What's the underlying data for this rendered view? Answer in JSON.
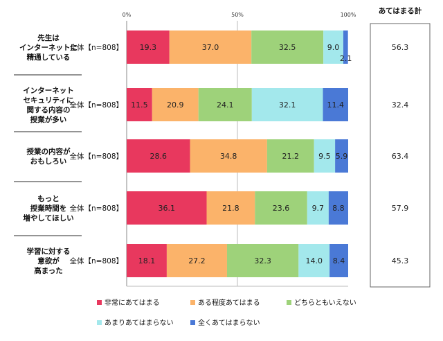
{
  "chart_data": {
    "type": "bar",
    "orientation": "horizontal",
    "stacked": true,
    "xlim": [
      0,
      100
    ],
    "x_ticks": [
      "0%",
      "50%",
      "100%"
    ],
    "grid": false,
    "legend_position": "bottom",
    "summary_header": "あてはまる計",
    "series": [
      {
        "name": "非常にあてはまる",
        "color": "#e8385e",
        "values": [
          19.3,
          11.5,
          28.6,
          36.1,
          18.1
        ]
      },
      {
        "name": "ある程度あてはまる",
        "color": "#fbb36a",
        "values": [
          37.0,
          20.9,
          34.8,
          21.8,
          27.2
        ]
      },
      {
        "name": "どちらともいえない",
        "color": "#9ed27a",
        "values": [
          32.5,
          24.1,
          21.2,
          23.6,
          32.3
        ]
      },
      {
        "name": "あまりあてはまらない",
        "color": "#a3e8ec",
        "values": [
          9.0,
          32.1,
          9.5,
          9.7,
          14.0
        ]
      },
      {
        "name": "全くあてはまらない",
        "color": "#4a79d6",
        "values": [
          2.1,
          11.4,
          5.9,
          8.8,
          8.4
        ]
      }
    ],
    "categories": [
      {
        "lines": [
          "先生は",
          "インターネットに",
          "精通している"
        ],
        "group": "全体【n=808】",
        "total": "56.3"
      },
      {
        "lines": [
          "インターネット",
          "セキュリティに",
          "関する内容の",
          "授業が多い"
        ],
        "group": "全体【n=808】",
        "total": "32.4"
      },
      {
        "lines": [
          "授業の内容が",
          "おもしろい"
        ],
        "group": "全体【n=808】",
        "total": "63.4"
      },
      {
        "lines": [
          "もっと",
          "授業時間を",
          "増やしてほしい"
        ],
        "group": "全体【n=808】",
        "total": "57.9"
      },
      {
        "lines": [
          "学習に対する",
          "意欲が",
          "高まった"
        ],
        "group": "全体【n=808】",
        "total": "45.3"
      }
    ]
  }
}
